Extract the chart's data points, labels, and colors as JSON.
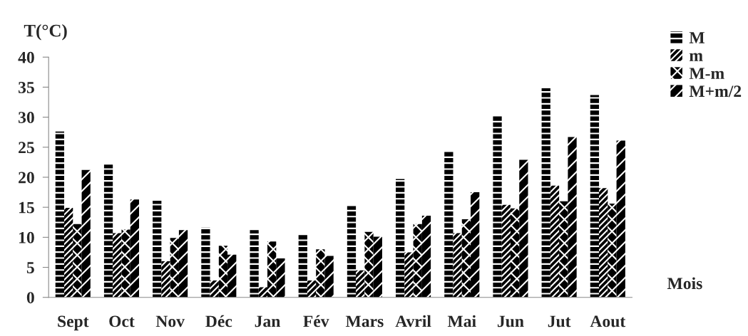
{
  "chart_data": {
    "type": "bar",
    "ylabel": "T(°C)",
    "xlabel": "Mois",
    "categories": [
      "Sept",
      "Oct",
      "Nov",
      "Déc",
      "Jan",
      "Fév",
      "Mars",
      "Avril",
      "Mai",
      "Jun",
      "Jut",
      "Aout"
    ],
    "series": [
      {
        "name": "M",
        "color": "#000000",
        "values": [
          27.6,
          22.1,
          16.1,
          11.6,
          11.2,
          10.6,
          15.2,
          19.7,
          24.3,
          30.2,
          34.8,
          33.7
        ]
      },
      {
        "name": "m",
        "color": "#000000",
        "values": [
          14.9,
          10.7,
          6.0,
          2.8,
          1.7,
          2.8,
          4.5,
          7.5,
          10.7,
          15.4,
          18.6,
          18.2
        ]
      },
      {
        "name": "M-m",
        "color": "#000000",
        "values": [
          12.2,
          11.3,
          9.9,
          8.6,
          9.3,
          8.0,
          10.9,
          12.2,
          13.0,
          14.8,
          16.0,
          15.6
        ]
      },
      {
        "name": "M+m/2",
        "color": "#000000",
        "values": [
          21.2,
          16.3,
          11.2,
          7.1,
          6.5,
          6.9,
          10.1,
          13.6,
          17.5,
          22.9,
          26.7,
          26.1
        ]
      }
    ],
    "ylim": [
      0,
      40
    ],
    "yticks": [
      0,
      5,
      10,
      15,
      20,
      25,
      30,
      35,
      40
    ],
    "grid": false,
    "legend": "top right"
  }
}
